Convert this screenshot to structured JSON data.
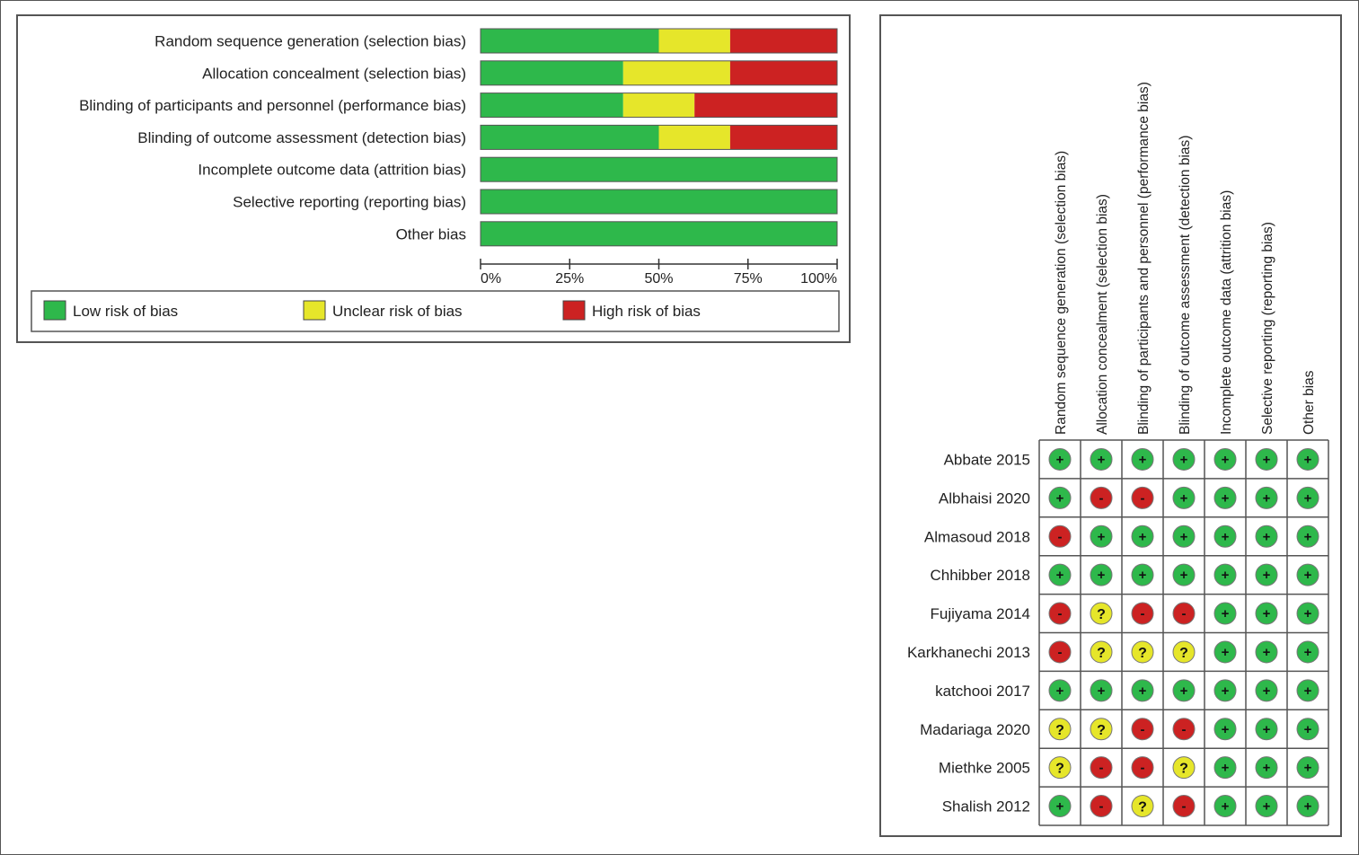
{
  "colors": {
    "low": "#2eb84b",
    "unclear": "#e6e62a",
    "high": "#cc2222",
    "border": "#555555"
  },
  "chart_data": [
    {
      "type": "bar",
      "orientation": "horizontal",
      "stacked": true,
      "categories": [
        "Random sequence generation (selection bias)",
        "Allocation concealment (selection bias)",
        "Blinding of participants and personnel (performance bias)",
        "Blinding of outcome assessment (detection bias)",
        "Incomplete outcome data (attrition bias)",
        "Selective reporting (reporting bias)",
        "Other bias"
      ],
      "series": [
        {
          "name": "Low risk of bias",
          "color": "#2eb84b",
          "values": [
            50,
            40,
            40,
            50,
            100,
            100,
            100
          ]
        },
        {
          "name": "Unclear risk of bias",
          "color": "#e6e62a",
          "values": [
            20,
            30,
            20,
            20,
            0,
            0,
            0
          ]
        },
        {
          "name": "High risk of bias",
          "color": "#cc2222",
          "values": [
            30,
            30,
            40,
            30,
            0,
            0,
            0
          ]
        }
      ],
      "xlim": [
        0,
        100
      ],
      "xticks": [
        "0%",
        "25%",
        "50%",
        "75%",
        "100%"
      ],
      "legend": "bottom"
    },
    {
      "type": "table",
      "columns": [
        "Random sequence generation (selection bias)",
        "Allocation concealment (selection bias)",
        "Blinding of participants and personnel (performance bias)",
        "Blinding of outcome assessment (detection bias)",
        "Incomplete outcome data (attrition bias)",
        "Selective reporting (reporting bias)",
        "Other bias"
      ],
      "rows": [
        {
          "study": "Abbate 2015",
          "ratings": [
            "+",
            "+",
            "+",
            "+",
            "+",
            "+",
            "+"
          ]
        },
        {
          "study": "Albhaisi 2020",
          "ratings": [
            "+",
            "-",
            "-",
            "+",
            "+",
            "+",
            "+"
          ]
        },
        {
          "study": "Almasoud 2018",
          "ratings": [
            "-",
            "+",
            "+",
            "+",
            "+",
            "+",
            "+"
          ]
        },
        {
          "study": "Chhibber 2018",
          "ratings": [
            "+",
            "+",
            "+",
            "+",
            "+",
            "+",
            "+"
          ]
        },
        {
          "study": "Fujiyama 2014",
          "ratings": [
            "-",
            "?",
            "-",
            "-",
            "+",
            "+",
            "+"
          ]
        },
        {
          "study": "Karkhanechi 2013",
          "ratings": [
            "-",
            "?",
            "?",
            "?",
            "+",
            "+",
            "+"
          ]
        },
        {
          "study": "katchooi 2017",
          "ratings": [
            "+",
            "+",
            "+",
            "+",
            "+",
            "+",
            "+"
          ]
        },
        {
          "study": "Madariaga 2020",
          "ratings": [
            "?",
            "?",
            "-",
            "-",
            "+",
            "+",
            "+"
          ]
        },
        {
          "study": "Miethke 2005",
          "ratings": [
            "?",
            "-",
            "-",
            "?",
            "+",
            "+",
            "+"
          ]
        },
        {
          "study": "Shalish 2012",
          "ratings": [
            "+",
            "-",
            "?",
            "-",
            "+",
            "+",
            "+"
          ]
        }
      ]
    }
  ]
}
